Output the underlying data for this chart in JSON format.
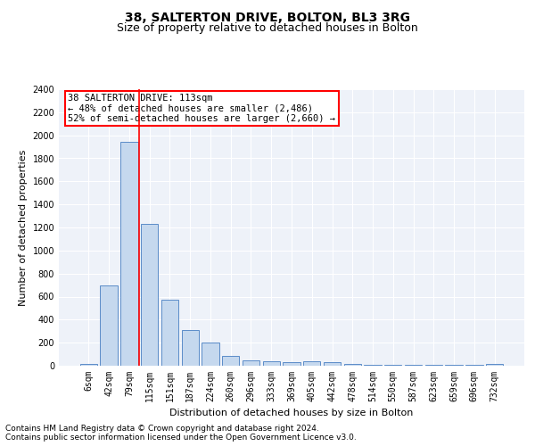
{
  "title": "38, SALTERTON DRIVE, BOLTON, BL3 3RG",
  "subtitle": "Size of property relative to detached houses in Bolton",
  "xlabel": "Distribution of detached houses by size in Bolton",
  "ylabel": "Number of detached properties",
  "bar_color": "#c5d8ee",
  "bar_edgecolor": "#5b8cc8",
  "categories": [
    "6sqm",
    "42sqm",
    "79sqm",
    "115sqm",
    "151sqm",
    "187sqm",
    "224sqm",
    "260sqm",
    "296sqm",
    "333sqm",
    "369sqm",
    "405sqm",
    "442sqm",
    "478sqm",
    "514sqm",
    "550sqm",
    "587sqm",
    "623sqm",
    "659sqm",
    "696sqm",
    "732sqm"
  ],
  "values": [
    15,
    700,
    1940,
    1230,
    575,
    310,
    200,
    85,
    48,
    35,
    30,
    35,
    32,
    18,
    8,
    5,
    5,
    5,
    5,
    5,
    16
  ],
  "ylim": [
    0,
    2400
  ],
  "yticks": [
    0,
    200,
    400,
    600,
    800,
    1000,
    1200,
    1400,
    1600,
    1800,
    2000,
    2200,
    2400
  ],
  "property_line_label": "38 SALTERTON DRIVE: 113sqm",
  "annotation_line1": "← 48% of detached houses are smaller (2,486)",
  "annotation_line2": "52% of semi-detached houses are larger (2,660) →",
  "footnote1": "Contains HM Land Registry data © Crown copyright and database right 2024.",
  "footnote2": "Contains public sector information licensed under the Open Government Licence v3.0.",
  "bg_color": "#eef2f9",
  "grid_color": "#ffffff",
  "title_fontsize": 10,
  "subtitle_fontsize": 9,
  "axis_label_fontsize": 8,
  "tick_fontsize": 7,
  "annotation_fontsize": 7.5,
  "footnote_fontsize": 6.5
}
